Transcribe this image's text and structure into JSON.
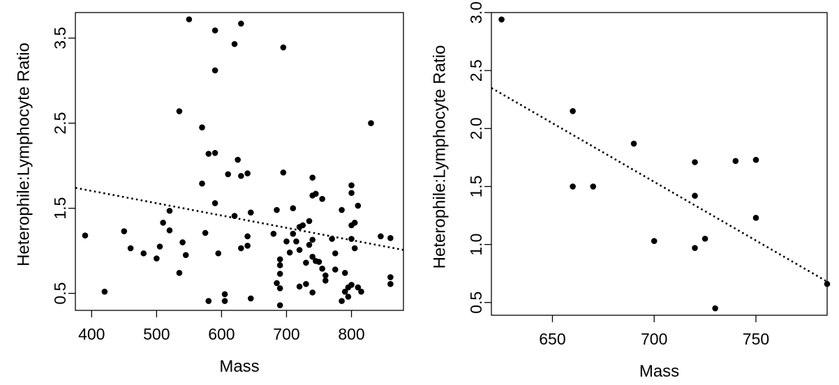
{
  "chart_data": [
    {
      "type": "scatter",
      "xlabel": "Mass",
      "ylabel": "Heterophile:Lymphocyte Ratio",
      "xlim": [
        375,
        880
      ],
      "ylim": [
        0.3,
        3.8
      ],
      "x_ticks": [
        400,
        500,
        600,
        700,
        800
      ],
      "y_ticks": [
        0.5,
        1.5,
        2.5,
        3.5
      ],
      "x_tick_labels": [
        "400",
        "500",
        "600",
        "700",
        "800"
      ],
      "y_tick_labels": [
        "0.5",
        "1.5",
        "2.5",
        "3.5"
      ],
      "grid": false,
      "trendline": {
        "style": "dotted",
        "x": [
          375,
          880
        ],
        "y": [
          1.74,
          1.01
        ]
      },
      "points": [
        [
          390,
          1.18
        ],
        [
          420,
          0.52
        ],
        [
          450,
          1.23
        ],
        [
          460,
          1.03
        ],
        [
          480,
          0.97
        ],
        [
          500,
          0.91
        ],
        [
          505,
          1.05
        ],
        [
          510,
          1.33
        ],
        [
          520,
          1.24
        ],
        [
          520,
          1.47
        ],
        [
          535,
          0.74
        ],
        [
          535,
          2.64
        ],
        [
          540,
          1.1
        ],
        [
          545,
          0.95
        ],
        [
          550,
          3.72
        ],
        [
          570,
          2.45
        ],
        [
          570,
          1.79
        ],
        [
          575,
          1.21
        ],
        [
          580,
          2.14
        ],
        [
          580,
          0.41
        ],
        [
          590,
          3.59
        ],
        [
          590,
          3.12
        ],
        [
          590,
          2.15
        ],
        [
          590,
          1.56
        ],
        [
          595,
          0.97
        ],
        [
          605,
          0.49
        ],
        [
          605,
          0.41
        ],
        [
          610,
          1.9
        ],
        [
          620,
          3.43
        ],
        [
          620,
          1.41
        ],
        [
          625,
          2.07
        ],
        [
          630,
          3.67
        ],
        [
          630,
          1.88
        ],
        [
          630,
          1.03
        ],
        [
          640,
          1.91
        ],
        [
          640,
          1.17
        ],
        [
          640,
          1.06
        ],
        [
          645,
          1.45
        ],
        [
          645,
          0.44
        ],
        [
          680,
          1.2
        ],
        [
          685,
          1.48
        ],
        [
          685,
          0.62
        ],
        [
          690,
          0.9
        ],
        [
          690,
          0.83
        ],
        [
          690,
          0.73
        ],
        [
          690,
          0.56
        ],
        [
          690,
          0.36
        ],
        [
          695,
          3.39
        ],
        [
          695,
          1.92
        ],
        [
          700,
          1.11
        ],
        [
          705,
          0.98
        ],
        [
          710,
          1.5
        ],
        [
          710,
          1.2
        ],
        [
          715,
          1.11
        ],
        [
          720,
          1.28
        ],
        [
          720,
          1.01
        ],
        [
          720,
          0.58
        ],
        [
          725,
          1.3
        ],
        [
          730,
          0.86
        ],
        [
          730,
          0.61
        ],
        [
          735,
          1.35
        ],
        [
          735,
          1.07
        ],
        [
          740,
          1.86
        ],
        [
          740,
          1.65
        ],
        [
          740,
          1.13
        ],
        [
          740,
          0.93
        ],
        [
          740,
          0.51
        ],
        [
          745,
          1.67
        ],
        [
          745,
          0.88
        ],
        [
          750,
          0.87
        ],
        [
          755,
          1.61
        ],
        [
          755,
          0.79
        ],
        [
          760,
          0.71
        ],
        [
          760,
          0.65
        ],
        [
          770,
          1.14
        ],
        [
          775,
          0.97
        ],
        [
          775,
          0.78
        ],
        [
          785,
          1.48
        ],
        [
          785,
          0.41
        ],
        [
          790,
          0.74
        ],
        [
          790,
          0.52
        ],
        [
          795,
          0.46
        ],
        [
          795,
          0.57
        ],
        [
          800,
          1.77
        ],
        [
          800,
          1.68
        ],
        [
          800,
          1.3
        ],
        [
          800,
          1.14
        ],
        [
          800,
          0.6
        ],
        [
          805,
          1.33
        ],
        [
          805,
          1.03
        ],
        [
          810,
          1.53
        ],
        [
          810,
          0.57
        ],
        [
          815,
          0.52
        ],
        [
          830,
          2.5
        ],
        [
          845,
          1.17
        ],
        [
          860,
          1.15
        ],
        [
          860,
          0.69
        ],
        [
          860,
          0.61
        ]
      ]
    },
    {
      "type": "scatter",
      "xlabel": "Mass",
      "ylabel": "Heterophile:Lymphocyte Ratio",
      "xlim": [
        620,
        785
      ],
      "ylim": [
        0.39,
        3.0
      ],
      "x_ticks": [
        650,
        700,
        750
      ],
      "y_ticks": [
        0.5,
        1.0,
        1.5,
        2.0,
        2.5,
        3.0
      ],
      "x_tick_labels": [
        "650",
        "700",
        "750"
      ],
      "y_tick_labels": [
        "0.5",
        "1.0",
        "1.5",
        "2.0",
        "2.5",
        "3.0"
      ],
      "grid": false,
      "trendline": {
        "style": "dotted",
        "x": [
          620,
          785
        ],
        "y": [
          2.35,
          0.68
        ]
      },
      "points": [
        [
          625,
          2.94
        ],
        [
          660,
          2.15
        ],
        [
          660,
          1.5
        ],
        [
          670,
          1.5
        ],
        [
          690,
          1.87
        ],
        [
          700,
          1.03
        ],
        [
          720,
          1.71
        ],
        [
          720,
          1.42
        ],
        [
          720,
          0.97
        ],
        [
          725,
          1.05
        ],
        [
          730,
          0.45
        ],
        [
          740,
          1.72
        ],
        [
          750,
          1.73
        ],
        [
          750,
          1.23
        ],
        [
          785,
          0.66
        ]
      ]
    }
  ]
}
